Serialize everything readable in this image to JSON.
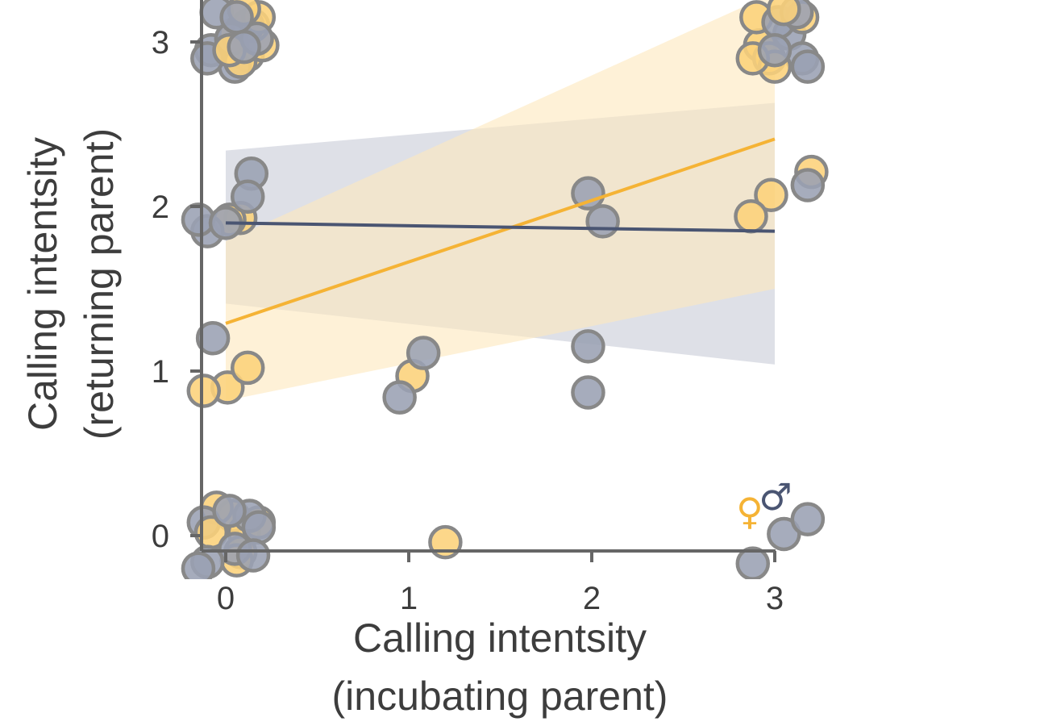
{
  "chart_data": {
    "type": "scatter",
    "xlabel": [
      "Calling intentsity",
      "(incubating parent)"
    ],
    "ylabel": [
      "Calling intentsity",
      "(returning parent)"
    ],
    "xlim": [
      -0.18,
      3.2
    ],
    "ylim": [
      -0.28,
      3.25
    ],
    "xticks": [
      "0",
      "1",
      "2",
      "3"
    ],
    "yticks": [
      "0",
      "1",
      "2",
      "3"
    ],
    "grid": false,
    "legend_position": "bottom-right",
    "legend": [
      {
        "symbol": "♀",
        "color": "#f5b335"
      },
      {
        "symbol": "♂",
        "color": "#4a5572"
      }
    ],
    "colors": {
      "female_point": "#fcd17a",
      "female_line": "#f5b335",
      "female_band": "#fde8bf",
      "male_point": "#9aa0b3",
      "male_line": "#4a5572",
      "male_band": "#d3d6df",
      "point_edge": "#888888",
      "axis": "#666666"
    },
    "series": [
      {
        "sex": "female",
        "regression": {
          "x": [
            0,
            3
          ],
          "y": [
            1.29,
            2.41
          ]
        },
        "ci_band": {
          "x": [
            0,
            3
          ],
          "lower": [
            0.82,
            1.5
          ],
          "upper": [
            1.79,
            3.3
          ]
        },
        "points": [
          [
            0.05,
            3.05
          ],
          [
            0.12,
            2.92
          ],
          [
            0.2,
            2.98
          ],
          [
            0.15,
            3.1
          ],
          [
            0.08,
            2.88
          ],
          [
            0.18,
            3.15
          ],
          [
            0.02,
            2.95
          ],
          [
            0.1,
            3.2
          ],
          [
            2.92,
            2.98
          ],
          [
            2.97,
            2.9
          ],
          [
            2.9,
            3.15
          ],
          [
            3.0,
            2.85
          ],
          [
            3.15,
            3.15
          ],
          [
            2.88,
            2.9
          ],
          [
            3.05,
            3.2
          ],
          [
            0.08,
            1.93
          ],
          [
            0.02,
            1.92
          ],
          [
            2.98,
            2.07
          ],
          [
            3.2,
            2.21
          ],
          [
            2.87,
            1.94
          ],
          [
            0.01,
            0.9
          ],
          [
            -0.12,
            0.88
          ],
          [
            1.02,
            0.97
          ],
          [
            0.12,
            1.02
          ],
          [
            0.04,
            0.12
          ],
          [
            0.1,
            0.02
          ],
          [
            0.08,
            -0.1
          ],
          [
            0.18,
            0.08
          ],
          [
            -0.05,
            0.17
          ],
          [
            0.06,
            -0.15
          ],
          [
            1.2,
            -0.04
          ],
          [
            -0.08,
            0.02
          ]
        ]
      },
      {
        "sex": "male",
        "regression": {
          "x": [
            0,
            3
          ],
          "y": [
            1.9,
            1.85
          ]
        },
        "ci_band": {
          "x": [
            0,
            3
          ],
          "lower": [
            1.41,
            1.04
          ],
          "upper": [
            2.34,
            2.63
          ]
        },
        "points": [
          [
            -0.05,
            3.18
          ],
          [
            -0.08,
            2.95
          ],
          [
            0.05,
            2.85
          ],
          [
            0.12,
            3.1
          ],
          [
            0.03,
            3.02
          ],
          [
            -0.1,
            2.9
          ],
          [
            0.17,
            3.02
          ],
          [
            0.06,
            3.15
          ],
          [
            0.1,
            2.97
          ],
          [
            3.08,
            3.05
          ],
          [
            3.15,
            2.9
          ],
          [
            3.02,
            3.12
          ],
          [
            3.12,
            3.18
          ],
          [
            3.0,
            2.95
          ],
          [
            3.18,
            2.85
          ],
          [
            0.14,
            2.2
          ],
          [
            0.12,
            2.06
          ],
          [
            -0.1,
            1.85
          ],
          [
            -0.15,
            1.92
          ],
          [
            0.0,
            1.9
          ],
          [
            1.98,
            2.08
          ],
          [
            2.06,
            1.91
          ],
          [
            3.18,
            2.13
          ],
          [
            -0.07,
            1.2
          ],
          [
            1.08,
            1.11
          ],
          [
            0.95,
            0.84
          ],
          [
            1.98,
            1.15
          ],
          [
            1.98,
            0.87
          ],
          [
            0.13,
            0.12
          ],
          [
            0.18,
            0.05
          ],
          [
            -0.12,
            0.08
          ],
          [
            0.05,
            -0.08
          ],
          [
            0.15,
            -0.12
          ],
          [
            -0.1,
            -0.16
          ],
          [
            0.02,
            0.15
          ],
          [
            -0.15,
            -0.2
          ],
          [
            3.05,
            0.01
          ],
          [
            3.18,
            0.1
          ],
          [
            2.88,
            -0.17
          ]
        ]
      }
    ]
  }
}
